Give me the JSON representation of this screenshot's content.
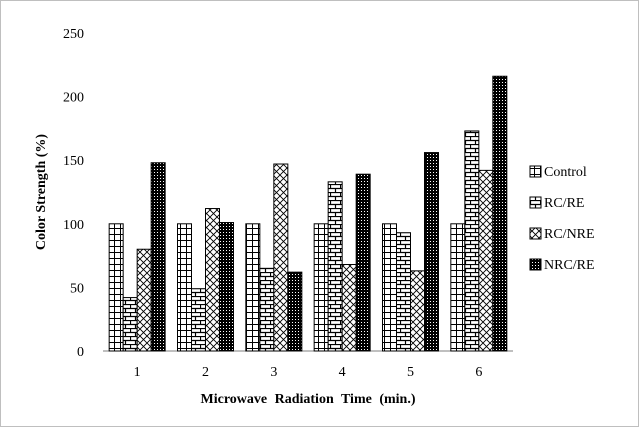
{
  "chart_data": {
    "type": "bar",
    "title": "",
    "xlabel": "Microwave Radiation Time (min.)",
    "ylabel": "Color Strength (%)",
    "ylim": [
      0,
      250
    ],
    "yticks": [
      0,
      50,
      100,
      150,
      200,
      250
    ],
    "categories": [
      "1",
      "2",
      "3",
      "4",
      "5",
      "6"
    ],
    "grid": false,
    "legend_position": "right",
    "series": [
      {
        "name": "Control",
        "pattern": "grid-fine",
        "values": [
          100,
          100,
          100,
          100,
          100,
          100
        ]
      },
      {
        "name": "RC/RE",
        "pattern": "brick",
        "values": [
          42,
          49,
          65,
          133,
          93,
          173
        ]
      },
      {
        "name": "RC/NRE",
        "pattern": "crosshatch",
        "values": [
          80,
          112,
          147,
          68,
          63,
          142
        ]
      },
      {
        "name": "NRC/RE",
        "pattern": "dotted-dark",
        "values": [
          148,
          101,
          62,
          139,
          156,
          216
        ]
      }
    ]
  }
}
